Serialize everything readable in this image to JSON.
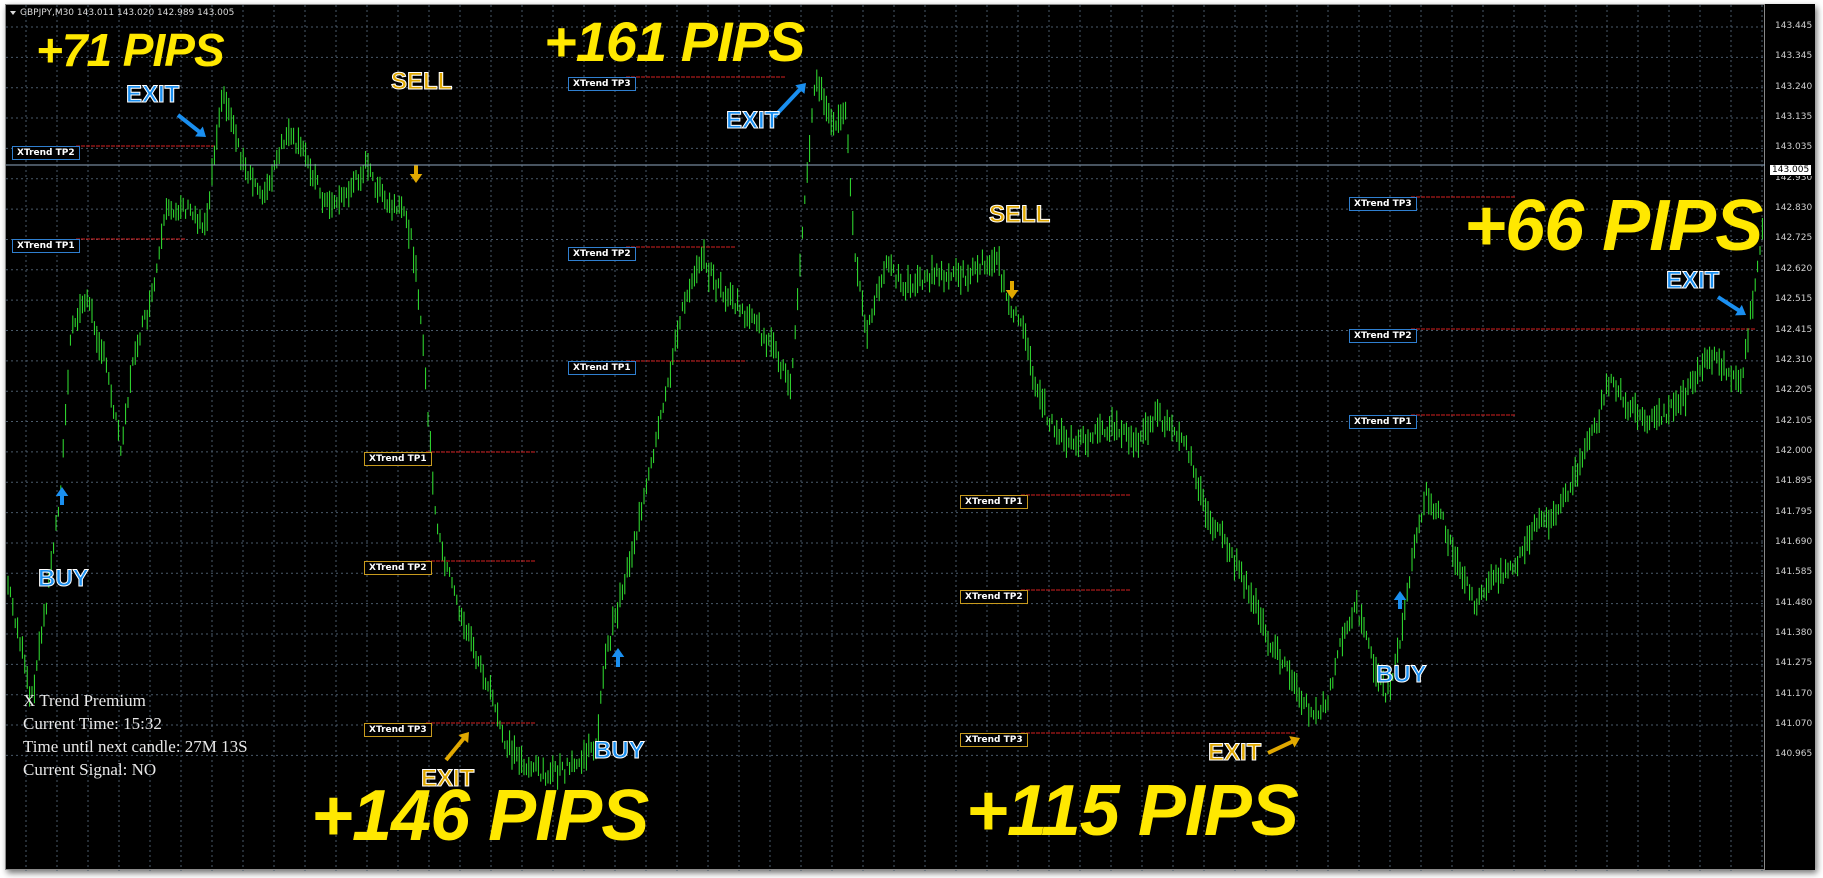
{
  "chart": {
    "header": "GBPJPY,M30  143.011 143.020 142.989 143.005",
    "current_price": "143.005",
    "price_labels": [
      "143.445",
      "143.345",
      "143.240",
      "143.135",
      "143.035",
      "142.930",
      "142.830",
      "142.725",
      "142.620",
      "142.515",
      "142.415",
      "142.310",
      "142.205",
      "142.105",
      "142.000",
      "141.895",
      "141.795",
      "141.690",
      "141.585",
      "141.480",
      "141.380",
      "141.275",
      "141.170",
      "141.070",
      "140.965"
    ],
    "colors": {
      "background": "#000000",
      "grid": "#4a5a6a",
      "candles": "#32e632",
      "pips": "#ffe800",
      "buy": "#1a8ff0",
      "sell": "#e0a800",
      "tp_line": "#d42020"
    }
  },
  "annotations": {
    "pips": [
      "+71 PIPS",
      "+161 PIPS",
      "+66 PIPS",
      "+146 PIPS",
      "+115 PIPS"
    ],
    "signals": {
      "buy": "BUY",
      "sell": "SELL",
      "exit": "EXIT"
    },
    "tp_labels": {
      "tp1": "XTrend TP1",
      "tp2": "XTrend TP2",
      "tp3": "XTrend TP3"
    }
  },
  "indicator_info": {
    "title": "X Trend Premium",
    "current_time": "Current Time: 15:32",
    "time_until_next_candle": "Time until next candle: 27M 13S",
    "current_signal": "Current Signal:   NO"
  }
}
